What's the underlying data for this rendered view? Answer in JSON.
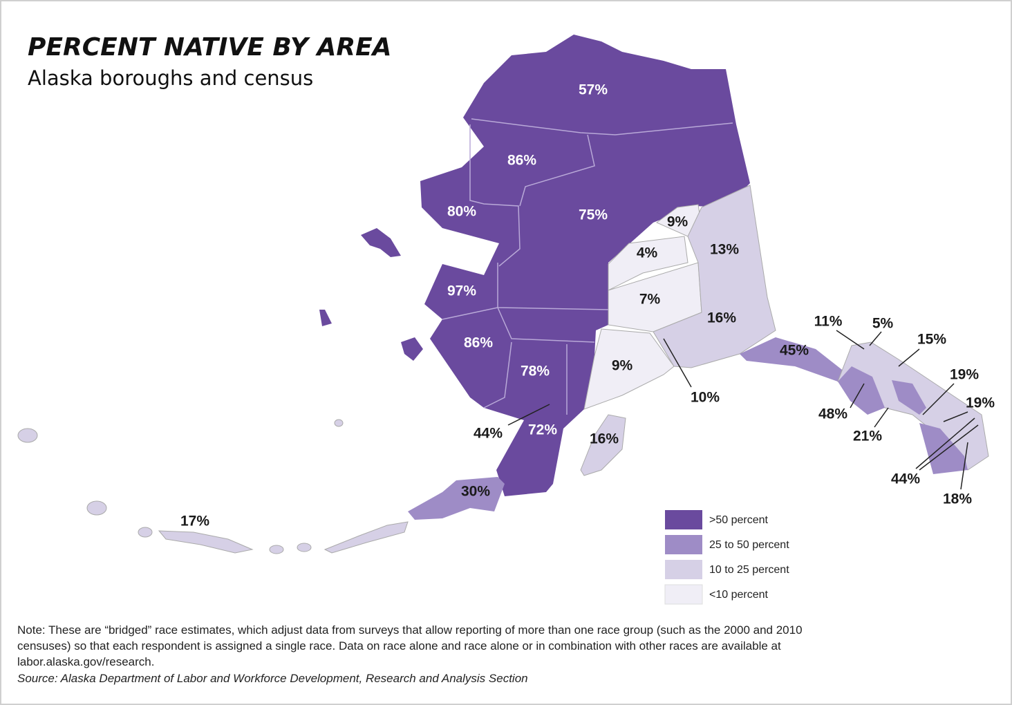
{
  "header": {
    "title": "PERCENT NATIVE BY AREA",
    "subtitle": "Alaska boroughs and census"
  },
  "map": {
    "labels": [
      "57%",
      "86%",
      "80%",
      "75%",
      "9%",
      "4%",
      "13%",
      "97%",
      "7%",
      "16%",
      "86%",
      "11%",
      "5%",
      "15%",
      "45%",
      "78%",
      "9%",
      "19%",
      "19%",
      "10%",
      "48%",
      "21%",
      "44%",
      "72%",
      "16%",
      "44%",
      "18%",
      "30%",
      "17%"
    ],
    "legend": [
      ">50 percent",
      "25 to 50 percent",
      "10 to 25 percent",
      "<10 percent"
    ]
  },
  "note": {
    "lines": [
      "Note: These are “bridged” race estimates, which adjust data from surveys that allow reporting of more than one race group (such as the 2000 and 2010",
      "censuses) so that each respondent is assigned a single race. Data on race alone and race alone or in combination with other races are available at",
      "labor.alaska.gov/research."
    ],
    "source": "Source: Alaska Department of Labor and Workforce Development, Research and Analysis Section"
  }
}
